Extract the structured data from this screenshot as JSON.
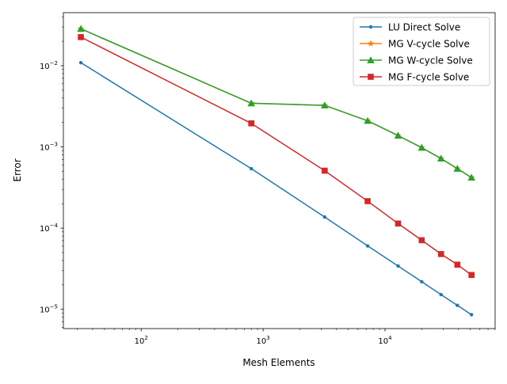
{
  "chart_data": {
    "type": "line",
    "title": "",
    "xlabel": "Mesh Elements",
    "ylabel": "Error",
    "xscale": "log",
    "yscale": "log",
    "xlim": [
      23,
      80000
    ],
    "ylim": [
      5.8e-06,
      0.045
    ],
    "grid": false,
    "legend_position": "upper right",
    "x_ticks": [
      {
        "value": 100,
        "base": "10",
        "exp": "2"
      },
      {
        "value": 1000,
        "base": "10",
        "exp": "3"
      },
      {
        "value": 10000,
        "base": "10",
        "exp": "4"
      }
    ],
    "y_ticks": [
      {
        "value": 1e-05,
        "base": "10",
        "exp": "−5"
      },
      {
        "value": 0.0001,
        "base": "10",
        "exp": "−4"
      },
      {
        "value": 0.001,
        "base": "10",
        "exp": "−3"
      },
      {
        "value": 0.01,
        "base": "10",
        "exp": "−2"
      }
    ],
    "x": [
      32,
      800,
      3200,
      7200,
      12800,
      20000,
      28800,
      39200,
      51200
    ],
    "series": [
      {
        "name": "LU Direct Solve",
        "color": "#1f77b4",
        "marker": "circle",
        "values": [
          0.0109,
          0.00054,
          0.000137,
          6.05e-05,
          3.42e-05,
          2.19e-05,
          1.52e-05,
          1.12e-05,
          8.6e-06
        ]
      },
      {
        "name": "MG V-cycle Solve",
        "color": "#ff7f0e",
        "marker": "star",
        "values": [
          0.0285,
          0.00345,
          0.00325,
          0.0021,
          0.00138,
          0.00098,
          0.00072,
          0.00054,
          0.00042
        ]
      },
      {
        "name": "MG W-cycle Solve",
        "color": "#2ca02c",
        "marker": "triangle",
        "values": [
          0.0285,
          0.00345,
          0.00325,
          0.0021,
          0.00138,
          0.00098,
          0.00072,
          0.00054,
          0.00042
        ]
      },
      {
        "name": "MG F-cycle Solve",
        "color": "#d62728",
        "marker": "square",
        "values": [
          0.0225,
          0.00195,
          0.00051,
          0.000215,
          0.000114,
          7.1e-05,
          4.8e-05,
          3.55e-05,
          2.65e-05
        ]
      }
    ]
  }
}
